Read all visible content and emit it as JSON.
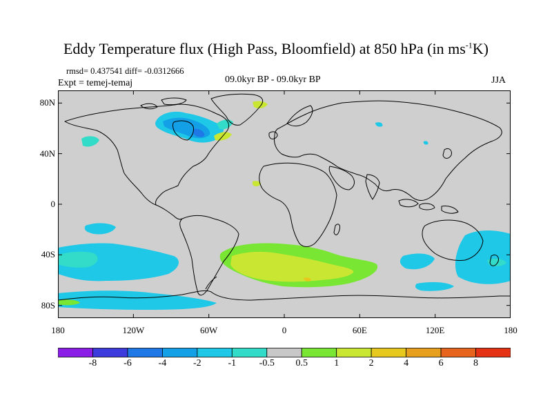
{
  "header": {
    "title": "Eddy Temperature flux (High Pass, Bloomfield) at 850 hPa (in ms",
    "title_sup": "-1",
    "title_tail": "K)",
    "stats": "rmsd= 0.437541 diff= -0.0312666",
    "expt": "Expt = temej-temaj",
    "period": "09.0kyr BP - 09.0kyr BP",
    "season": "JJA"
  },
  "axes": {
    "lat_labels": [
      "80N",
      "40N",
      "0",
      "40S",
      "80S"
    ],
    "lat_values": [
      80,
      40,
      0,
      -40,
      -80
    ],
    "lon_labels": [
      "180",
      "120W",
      "60W",
      "0",
      "60E",
      "120E",
      "180"
    ],
    "lon_values": [
      -180,
      -120,
      -60,
      0,
      60,
      120,
      180
    ],
    "lat_range": [
      -90,
      90
    ],
    "lon_range": [
      -180,
      180
    ]
  },
  "colorbar": {
    "levels": [
      "-8",
      "-6",
      "-4",
      "-2",
      "-1",
      "-0.5",
      "0.5",
      "1",
      "2",
      "4",
      "6",
      "8"
    ],
    "colors": [
      "#8a1ee6",
      "#3c3cdc",
      "#1e78e6",
      "#14a0e6",
      "#1ec8e6",
      "#32dcc8",
      "#c8c8c8",
      "#78e632",
      "#c8e632",
      "#e6c81e",
      "#e6a01e",
      "#e6641e",
      "#e63214"
    ]
  },
  "map_style": {
    "ocean_land_color": "#cfcfcf",
    "coast_color": "#000000"
  }
}
